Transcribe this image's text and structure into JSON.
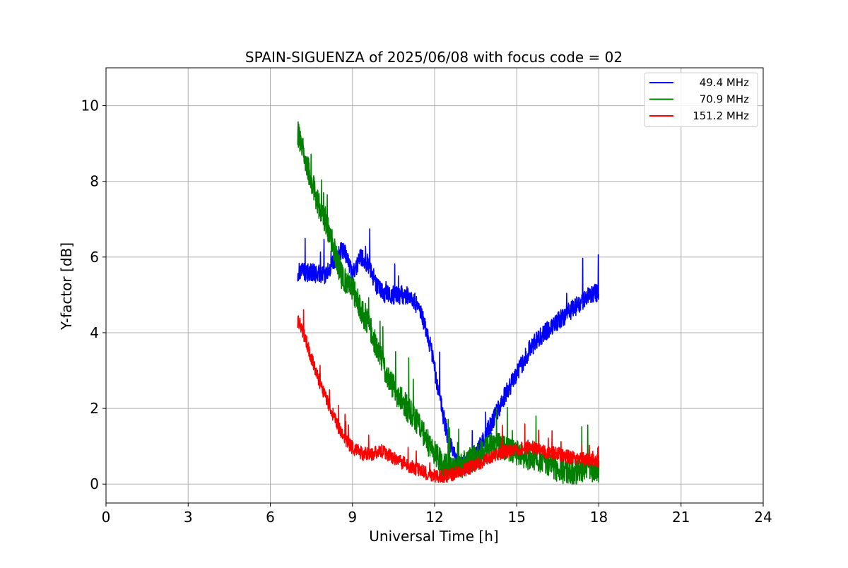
{
  "chart_data": {
    "type": "line",
    "title": "SPAIN-SIGUENZA of 2025/06/08 with focus code = 02",
    "xlabel": "Universal Time [h]",
    "ylabel": "Y-factor [dB]",
    "xlim": [
      0,
      24
    ],
    "ylim": [
      -0.5,
      11
    ],
    "xticks": [
      0,
      3,
      6,
      9,
      12,
      15,
      18,
      21,
      24
    ],
    "yticks": [
      0,
      2,
      4,
      6,
      8,
      10
    ],
    "grid": true,
    "legend_position": "top-right",
    "series": [
      {
        "name": "49.4 MHz",
        "color": "#0000ff",
        "noise": 0.25,
        "x": [
          7.0,
          7.5,
          8.0,
          8.3,
          8.6,
          8.8,
          9.0,
          9.3,
          9.6,
          9.9,
          10.2,
          10.6,
          11.0,
          11.3,
          11.6,
          11.9,
          12.2,
          12.5,
          12.8,
          13.1,
          13.4,
          13.8,
          14.2,
          14.6,
          15.0,
          15.5,
          16.0,
          16.5,
          17.0,
          17.5,
          18.0
        ],
        "y": [
          5.6,
          5.6,
          5.5,
          5.8,
          6.2,
          6.0,
          5.5,
          6.0,
          5.8,
          5.2,
          5.0,
          5.0,
          5.0,
          4.8,
          4.3,
          3.5,
          2.2,
          1.2,
          0.6,
          0.5,
          0.6,
          1.2,
          1.8,
          2.4,
          2.9,
          3.6,
          4.0,
          4.3,
          4.6,
          4.9,
          5.1
        ]
      },
      {
        "name": "70.9 MHz",
        "color": "#008000",
        "noise": 0.35,
        "x": [
          7.0,
          7.2,
          7.5,
          7.8,
          8.0,
          8.3,
          8.6,
          9.0,
          9.3,
          9.6,
          9.9,
          10.2,
          10.6,
          11.0,
          11.3,
          11.6,
          12.0,
          12.3,
          12.6,
          13.0,
          13.5,
          14.0,
          14.5,
          15.0,
          15.5,
          16.0,
          16.5,
          17.0,
          17.5,
          18.0
        ],
        "y": [
          9.3,
          8.8,
          8.0,
          7.3,
          7.0,
          6.3,
          5.5,
          5.2,
          4.6,
          4.2,
          3.6,
          3.0,
          2.4,
          2.0,
          1.7,
          1.3,
          0.8,
          0.5,
          0.4,
          0.5,
          0.7,
          1.0,
          1.0,
          0.8,
          0.7,
          0.6,
          0.4,
          0.3,
          0.4,
          0.4
        ]
      },
      {
        "name": "151.2 MHz",
        "color": "#ff0000",
        "noise": 0.18,
        "x": [
          7.0,
          7.1,
          7.3,
          7.6,
          7.9,
          8.2,
          8.5,
          8.8,
          9.1,
          9.4,
          9.7,
          10.0,
          10.5,
          11.0,
          11.5,
          12.0,
          12.3,
          12.6,
          13.0,
          13.5,
          14.0,
          14.5,
          15.0,
          15.5,
          16.0,
          16.5,
          17.0,
          17.5,
          18.0
        ],
        "y": [
          4.3,
          4.2,
          3.8,
          3.1,
          2.5,
          2.0,
          1.5,
          1.1,
          0.9,
          0.8,
          0.8,
          0.9,
          0.7,
          0.5,
          0.35,
          0.2,
          0.2,
          0.25,
          0.35,
          0.5,
          0.7,
          0.85,
          0.9,
          1.0,
          0.85,
          0.8,
          0.7,
          0.65,
          0.6
        ]
      }
    ]
  }
}
